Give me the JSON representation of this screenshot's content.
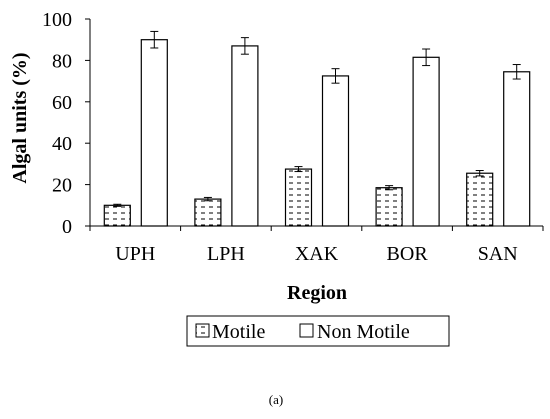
{
  "chart_data": {
    "type": "bar",
    "ylabel": "Algal units (%)",
    "xlabel": "Region",
    "ylim": [
      0,
      100
    ],
    "yticks": [
      "0",
      "20",
      "40",
      "60",
      "80",
      "100"
    ],
    "categories": [
      "UPH",
      "LPH",
      "XAK",
      "BOR",
      "SAN"
    ],
    "series": [
      {
        "name": "Motile",
        "fill": "dashed-hatch",
        "values": [
          10,
          13,
          27.5,
          18.5,
          25.5
        ],
        "errors": [
          0.5,
          0.8,
          1.2,
          1.0,
          1.3
        ]
      },
      {
        "name": "Non Motile",
        "fill": "#ffffff",
        "values": [
          90,
          87,
          72.5,
          81.5,
          74.5
        ],
        "errors": [
          4.0,
          4.0,
          3.5,
          4.0,
          3.5
        ]
      }
    ],
    "grid": false,
    "legend_position": "bottom"
  },
  "caption": "(a)"
}
